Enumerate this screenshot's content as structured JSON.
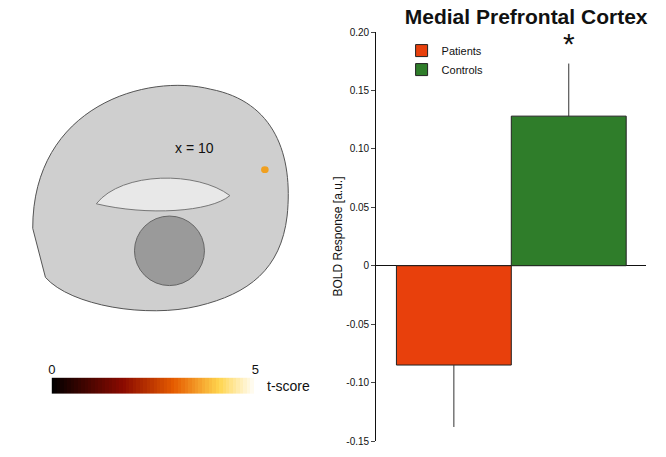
{
  "chart_data": {
    "type": "bar",
    "title": "Medial Prefrontal Cortex",
    "y_label": "BOLD Response [a.u.]",
    "categories": [
      null
    ],
    "series": [
      {
        "name": "Patients",
        "color": "#e8400c",
        "values": [
          -0.085
        ],
        "error": [
          0.053
        ]
      },
      {
        "name": "Controls",
        "color": "#2f7d2a",
        "values": [
          0.128
        ],
        "error": [
          0.045
        ]
      }
    ],
    "ylim": [
      -0.15,
      0.2
    ],
    "yticks": [
      -0.15,
      {
        "value": -0.1,
        "label": "-0.10"
      },
      -0.05,
      0,
      0.05,
      {
        "value": 0.1,
        "label": "0.10"
      },
      0.15,
      {
        "value": 0.2,
        "label": "0.20"
      }
    ],
    "grid": false,
    "legend": "upper left",
    "annotations": [
      {
        "text": "*",
        "series": "Controls"
      },
      {
        "text": "x = 10"
      }
    ],
    "colorbar": {
      "range": [
        0,
        5
      ],
      "ticks": [
        0,
        5
      ],
      "title": "t-score"
    }
  }
}
